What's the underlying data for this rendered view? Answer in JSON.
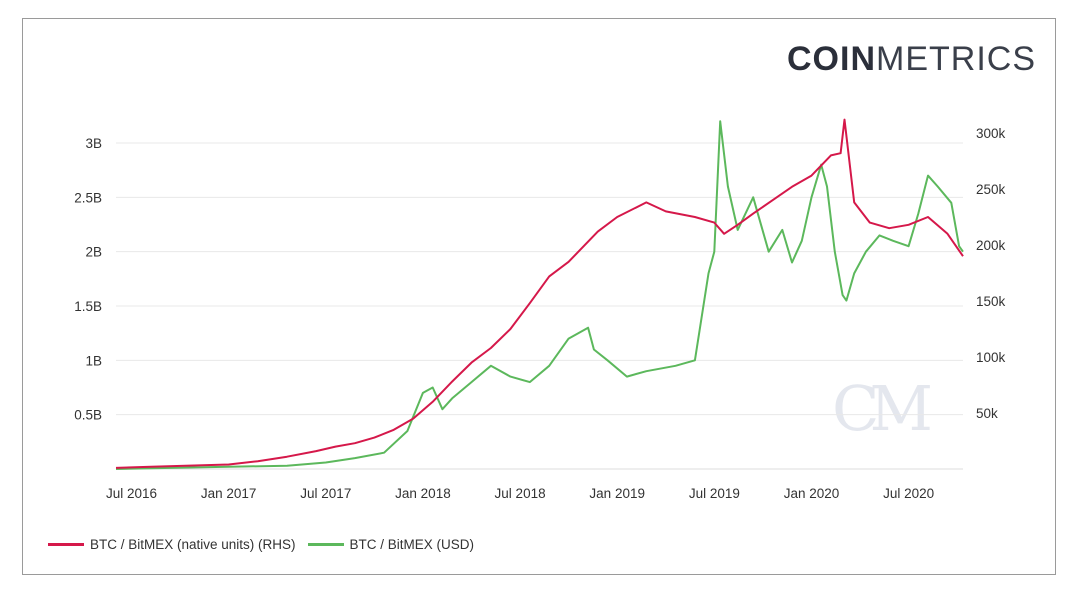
{
  "brand": {
    "bold": "COIN",
    "thin": "METRICS"
  },
  "watermark": "CM",
  "colors": {
    "rhs": "#d5184a",
    "usd": "#5cb85c",
    "grid": "#e8e8e8"
  },
  "legend": [
    {
      "label": "BTC / BitMEX (native units) (RHS)",
      "color": "#d5184a"
    },
    {
      "label": "BTC / BitMEX (USD)",
      "color": "#5cb85c"
    }
  ],
  "chart_data": {
    "type": "line",
    "title": "",
    "x_start": 2016.42,
    "x_end": 2020.78,
    "x_ticks": [
      {
        "value": 2016.5,
        "label": "Jul 2016"
      },
      {
        "value": 2017.0,
        "label": "Jan 2017"
      },
      {
        "value": 2017.5,
        "label": "Jul 2017"
      },
      {
        "value": 2018.0,
        "label": "Jan 2018"
      },
      {
        "value": 2018.5,
        "label": "Jul 2018"
      },
      {
        "value": 2019.0,
        "label": "Jan 2019"
      },
      {
        "value": 2019.5,
        "label": "Jul 2019"
      },
      {
        "value": 2020.0,
        "label": "Jan 2020"
      },
      {
        "value": 2020.5,
        "label": "Jul 2020"
      }
    ],
    "y_left": {
      "ylim": [
        0,
        3000000000
      ],
      "ticks": [
        {
          "value": 500000000,
          "label": "0.5B"
        },
        {
          "value": 1000000000,
          "label": "1B"
        },
        {
          "value": 1500000000,
          "label": "1.5B"
        },
        {
          "value": 2000000000,
          "label": "2B"
        },
        {
          "value": 2500000000,
          "label": "2.5B"
        },
        {
          "value": 3000000000,
          "label": "3B"
        }
      ]
    },
    "y_right": {
      "ylim": [
        0,
        300000
      ],
      "ticks": [
        {
          "value": 50000,
          "label": "50k"
        },
        {
          "value": 100000,
          "label": "100k"
        },
        {
          "value": 150000,
          "label": "150k"
        },
        {
          "value": 200000,
          "label": "200k"
        },
        {
          "value": 250000,
          "label": "250k"
        },
        {
          "value": 300000,
          "label": "300k"
        }
      ]
    },
    "series": [
      {
        "name": "BTC / BitMEX (native units) (RHS)",
        "axis": "right",
        "color": "#d5184a",
        "x": [
          2016.42,
          2016.6,
          2016.8,
          2017.0,
          2017.15,
          2017.3,
          2017.45,
          2017.55,
          2017.65,
          2017.75,
          2017.85,
          2017.95,
          2018.05,
          2018.15,
          2018.25,
          2018.35,
          2018.45,
          2018.55,
          2018.65,
          2018.75,
          2018.9,
          2019.0,
          2019.15,
          2019.25,
          2019.4,
          2019.5,
          2019.55,
          2019.62,
          2019.7,
          2019.8,
          2019.9,
          2020.0,
          2020.1,
          2020.15,
          2020.17,
          2020.22,
          2020.3,
          2020.4,
          2020.5,
          2020.6,
          2020.7,
          2020.78
        ],
        "values": [
          1000,
          2000,
          3000,
          4000,
          7000,
          11000,
          16000,
          20000,
          23000,
          28000,
          35000,
          45000,
          60000,
          78000,
          95000,
          108000,
          125000,
          148000,
          172000,
          185000,
          212000,
          225000,
          238000,
          230000,
          225000,
          220000,
          210000,
          218000,
          228000,
          240000,
          252000,
          262000,
          280000,
          282000,
          312000,
          238000,
          220000,
          215000,
          218000,
          225000,
          210000,
          190000
        ]
      },
      {
        "name": "BTC / BitMEX (USD)",
        "axis": "left",
        "color": "#5cb85c",
        "x": [
          2016.42,
          2016.7,
          2017.0,
          2017.3,
          2017.5,
          2017.65,
          2017.8,
          2017.92,
          2018.0,
          2018.05,
          2018.1,
          2018.15,
          2018.25,
          2018.35,
          2018.45,
          2018.55,
          2018.65,
          2018.75,
          2018.85,
          2018.88,
          2018.95,
          2019.05,
          2019.15,
          2019.3,
          2019.4,
          2019.47,
          2019.5,
          2019.53,
          2019.57,
          2019.62,
          2019.7,
          2019.78,
          2019.85,
          2019.9,
          2019.95,
          2020.0,
          2020.05,
          2020.08,
          2020.12,
          2020.16,
          2020.18,
          2020.22,
          2020.28,
          2020.35,
          2020.42,
          2020.5,
          2020.55,
          2020.6,
          2020.65,
          2020.72,
          2020.76,
          2020.78
        ],
        "values": [
          0,
          10000000,
          20000000,
          30000000,
          60000000,
          100000000,
          150000000,
          350000000,
          700000000,
          750000000,
          550000000,
          650000000,
          800000000,
          950000000,
          850000000,
          800000000,
          950000000,
          1200000000,
          1300000000,
          1100000000,
          1000000000,
          850000000,
          900000000,
          950000000,
          1000000000,
          1800000000,
          2000000000,
          3200000000,
          2600000000,
          2200000000,
          2500000000,
          2000000000,
          2200000000,
          1900000000,
          2100000000,
          2500000000,
          2800000000,
          2600000000,
          2000000000,
          1600000000,
          1550000000,
          1800000000,
          2000000000,
          2150000000,
          2100000000,
          2050000000,
          2350000000,
          2700000000,
          2600000000,
          2450000000,
          2050000000,
          2000000000
        ]
      }
    ]
  }
}
